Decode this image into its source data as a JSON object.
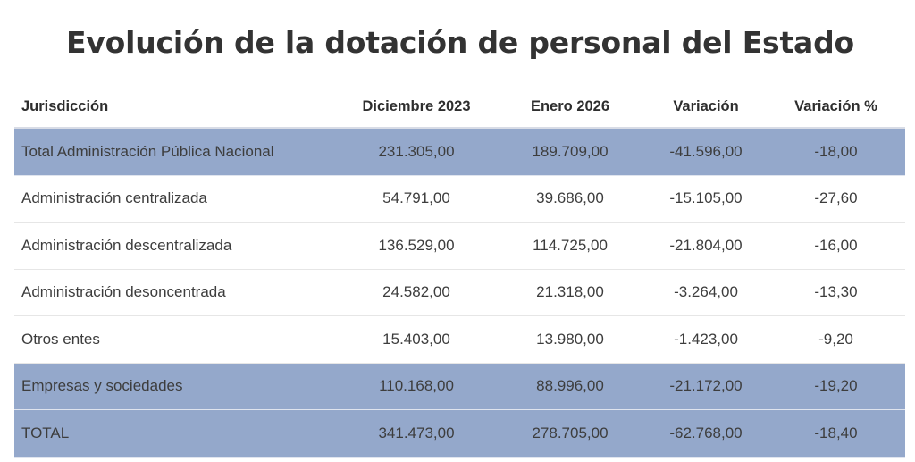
{
  "title": "Evolución de la dotación de personal del Estado",
  "colors": {
    "highlight_row": "#94a8cb",
    "text": "#3d3d3d",
    "title": "#333333"
  },
  "table": {
    "columns": [
      "Jurisdicción",
      "Diciembre 2023",
      "Enero 2026",
      "Variación",
      "Variación %"
    ],
    "rows": [
      {
        "highlight": true,
        "cells": [
          "Total Administración Pública Nacional",
          "231.305,00",
          "189.709,00",
          "-41.596,00",
          "-18,00"
        ]
      },
      {
        "highlight": false,
        "cells": [
          "Administración centralizada",
          "54.791,00",
          "39.686,00",
          "-15.105,00",
          "-27,60"
        ]
      },
      {
        "highlight": false,
        "cells": [
          "Administración descentralizada",
          "136.529,00",
          "114.725,00",
          "-21.804,00",
          "-16,00"
        ]
      },
      {
        "highlight": false,
        "cells": [
          "Administración desoncentrada",
          "24.582,00",
          "21.318,00",
          "-3.264,00",
          "-13,30"
        ]
      },
      {
        "highlight": false,
        "cells": [
          "Otros entes",
          "15.403,00",
          "13.980,00",
          "-1.423,00",
          "-9,20"
        ]
      },
      {
        "highlight": true,
        "cells": [
          "Empresas y sociedades",
          "110.168,00",
          "88.996,00",
          "-21.172,00",
          "-19,20"
        ]
      },
      {
        "highlight": true,
        "cells": [
          "TOTAL",
          "341.473,00",
          "278.705,00",
          "-62.768,00",
          "-18,40"
        ]
      }
    ]
  }
}
